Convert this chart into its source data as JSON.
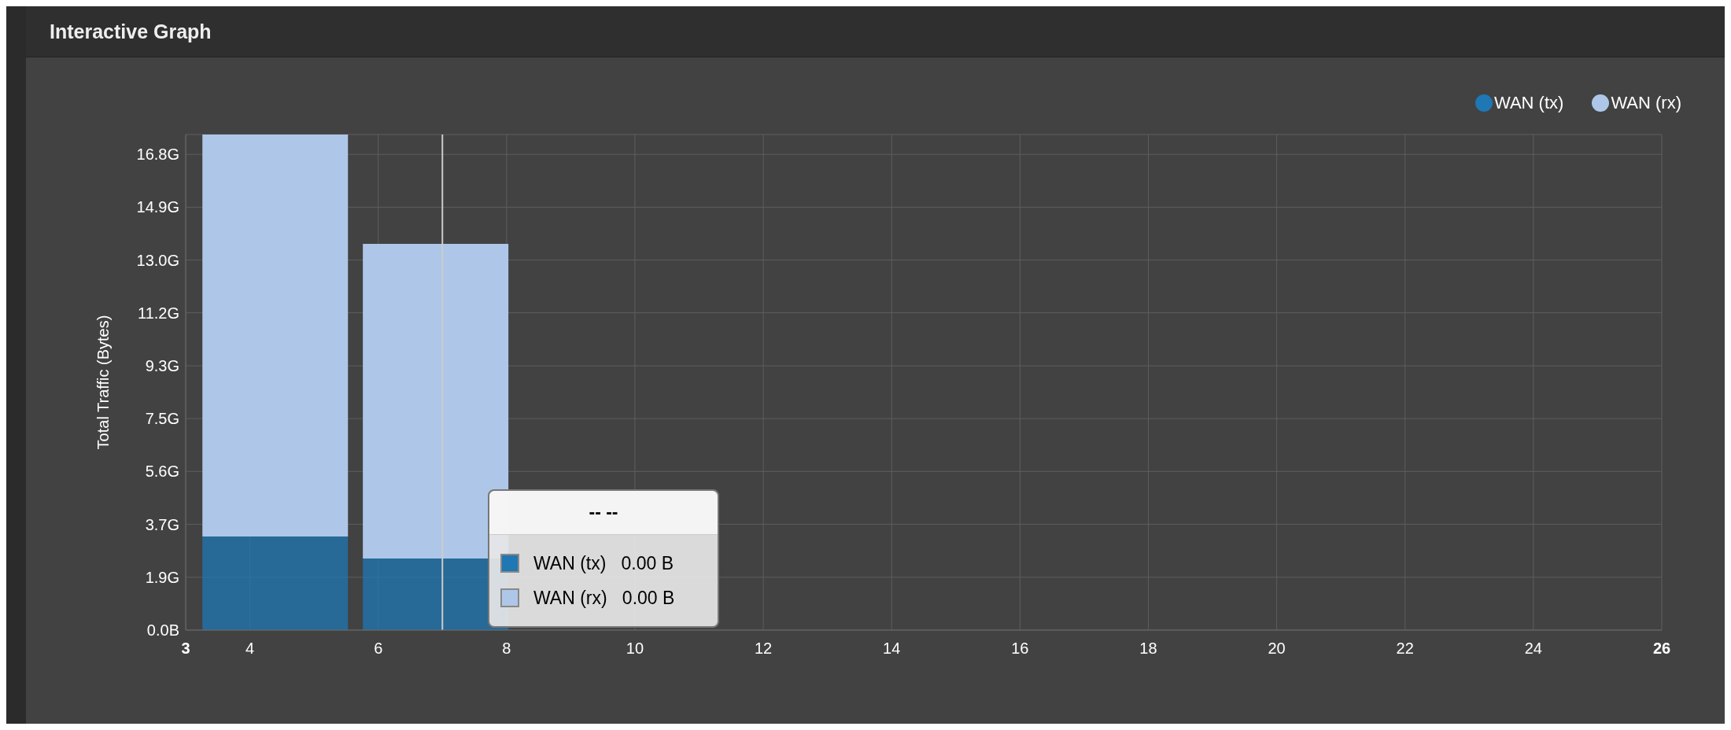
{
  "chart_data": {
    "type": "bar",
    "title": "Interactive Graph",
    "ylabel": "Total Traffic (Bytes)",
    "stacked": true,
    "x": [
      4.4,
      6.9
    ],
    "series": [
      {
        "name": "WAN (tx)",
        "color": "#1f77b4",
        "values": [
          3.3,
          2.52
        ]
      },
      {
        "name": "WAN (rx)",
        "color": "#aec7e8",
        "values": [
          14.16,
          11.09
        ]
      }
    ],
    "xlim": [
      3,
      26
    ],
    "xticks": [
      3,
      4,
      6,
      8,
      10,
      12,
      14,
      16,
      18,
      20,
      22,
      24,
      26
    ],
    "ylim": [
      0,
      17.46
    ],
    "yticks": [
      {
        "value": 0,
        "label": "0.0B"
      },
      {
        "value": 1.86,
        "label": "1.9G"
      },
      {
        "value": 3.73,
        "label": "3.7G"
      },
      {
        "value": 5.59,
        "label": "5.6G"
      },
      {
        "value": 7.45,
        "label": "7.5G"
      },
      {
        "value": 9.31,
        "label": "9.3G"
      },
      {
        "value": 11.18,
        "label": "11.2G"
      },
      {
        "value": 13.04,
        "label": "13.0G"
      },
      {
        "value": 14.9,
        "label": "14.9G"
      },
      {
        "value": 16.76,
        "label": "16.8G"
      }
    ],
    "ref_lines": [
      {
        "axis": "x",
        "value": 7,
        "color": "#cccccc"
      }
    ],
    "annotations": [
      "-- --",
      "WAN (tx)   0.00 B",
      "WAN (rx)   0.00 B"
    ],
    "grid": true,
    "legend": "top right"
  }
}
